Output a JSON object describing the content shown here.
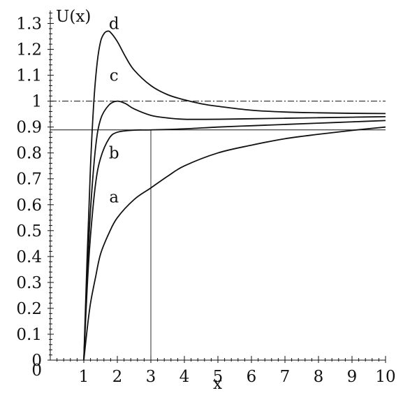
{
  "chart_data": {
    "type": "line",
    "title": "",
    "xlabel": "x",
    "ylabel": "U(x)",
    "xlim": [
      0,
      10
    ],
    "ylim": [
      0,
      1.35
    ],
    "grid": false,
    "x_ticks": [
      1,
      2,
      3,
      4,
      5,
      6,
      7,
      8,
      9,
      10
    ],
    "x_tick_labels": [
      "1",
      "2",
      "3",
      "4",
      "5",
      "6",
      "7",
      "8",
      "9",
      "10"
    ],
    "y_ticks": [
      0,
      0.1,
      0.2,
      0.3,
      0.4,
      0.5,
      0.6,
      0.7,
      0.8,
      0.9,
      1,
      1.1,
      1.2,
      1.3
    ],
    "y_tick_labels": [
      "0",
      "0.1",
      "0.2",
      "0.3",
      "0.4",
      "0.5",
      "0.6",
      "0.7",
      "0.8",
      "0.9",
      "1",
      "1.1",
      "1.2",
      "1.3"
    ],
    "series": [
      {
        "name": "a",
        "label_at": [
          1.9,
          0.63
        ],
        "x": [
          1,
          1.1,
          1.2,
          1.35,
          1.5,
          1.75,
          2,
          2.5,
          3,
          3.5,
          4,
          5,
          6,
          7,
          8,
          9,
          10
        ],
        "y": [
          0,
          0.12,
          0.22,
          0.32,
          0.41,
          0.49,
          0.55,
          0.62,
          0.665,
          0.71,
          0.75,
          0.8,
          0.83,
          0.855,
          0.872,
          0.887,
          0.9
        ]
      },
      {
        "name": "b",
        "label_at": [
          1.9,
          0.8
        ],
        "x": [
          1,
          1.1,
          1.2,
          1.35,
          1.5,
          1.75,
          2,
          2.5,
          3,
          4,
          5,
          6,
          7,
          8,
          9,
          10
        ],
        "y": [
          0,
          0.28,
          0.48,
          0.68,
          0.78,
          0.855,
          0.88,
          0.888,
          0.889,
          0.893,
          0.9,
          0.905,
          0.91,
          0.915,
          0.92,
          0.925
        ]
      },
      {
        "name": "c",
        "label_at": [
          1.9,
          1.1
        ],
        "x": [
          1,
          1.1,
          1.2,
          1.35,
          1.5,
          1.75,
          2,
          2.25,
          2.5,
          3,
          3.5,
          4,
          5,
          6,
          7,
          8,
          9,
          10
        ],
        "y": [
          0,
          0.33,
          0.58,
          0.82,
          0.93,
          0.985,
          1.0,
          0.99,
          0.97,
          0.945,
          0.935,
          0.93,
          0.93,
          0.932,
          0.934,
          0.936,
          0.938,
          0.94
        ]
      },
      {
        "name": "d",
        "label_at": [
          1.9,
          1.3
        ],
        "x": [
          1,
          1.1,
          1.2,
          1.3,
          1.4,
          1.5,
          1.6,
          1.7,
          1.8,
          2,
          2.25,
          2.5,
          3,
          3.5,
          4,
          4.5,
          5,
          6,
          7,
          8,
          9,
          10
        ],
        "y": [
          0,
          0.4,
          0.75,
          1.0,
          1.15,
          1.23,
          1.26,
          1.27,
          1.265,
          1.23,
          1.17,
          1.12,
          1.06,
          1.025,
          1.005,
          0.99,
          0.98,
          0.965,
          0.958,
          0.955,
          0.953,
          0.952
        ]
      }
    ],
    "reference_lines": [
      {
        "orientation": "horizontal",
        "y": 1.0,
        "style": "dash-dot"
      },
      {
        "orientation": "horizontal",
        "y": 0.889,
        "style": "solid"
      },
      {
        "orientation": "vertical",
        "x": 3,
        "y_to": 0.889,
        "style": "solid"
      }
    ]
  }
}
